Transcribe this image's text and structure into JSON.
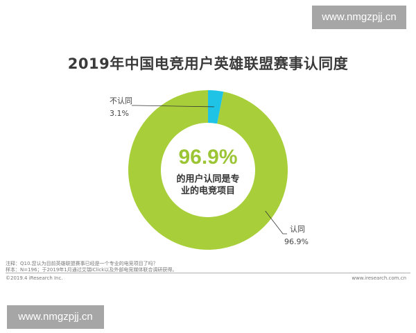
{
  "watermark": {
    "text": "www.nmgzpjj.cn"
  },
  "chart_data": {
    "type": "pie",
    "title": "2019年中国电竞用户英雄联盟赛事认同度",
    "categories": [
      "认同",
      "不认同"
    ],
    "values": [
      96.9,
      3.1
    ],
    "value_labels": [
      "96.9%",
      "3.1%"
    ],
    "colors": [
      "#a8cf3a",
      "#1fc3e6"
    ],
    "center_value": "96.9%",
    "center_text": [
      "的用户认同是专",
      "业的电竞项目"
    ]
  },
  "footer": {
    "note": "注释：Q10.您认为目前英雄联盟赛事已经是一个专业的电竞项目了吗？",
    "sample": "样本：N=196；于2019年1月通过艾瑞iClick以及外部电竞媒体联合调研获得。",
    "copyright": "©2019.4 iResearch Inc.",
    "site": "www.iresearch.com.cn"
  }
}
